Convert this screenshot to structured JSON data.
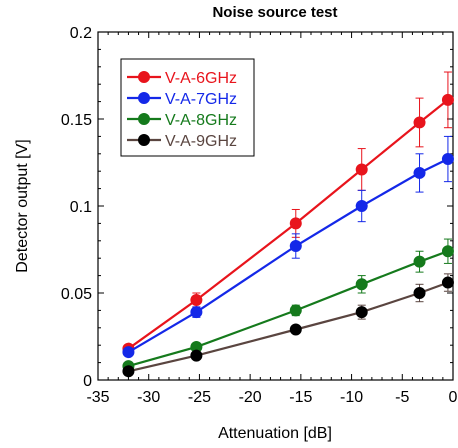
{
  "chart_data": {
    "type": "line",
    "title": "Noise source test",
    "xlabel": "Attenuation [dB]",
    "ylabel": "Detector output [V]",
    "xlim": [
      -35,
      0
    ],
    "ylim": [
      0,
      0.2
    ],
    "x_ticks": [
      "-35",
      "-30",
      "-25",
      "-20",
      "-15",
      "-10",
      "-5",
      "0"
    ],
    "y_ticks": [
      "0",
      "0.05",
      "0.1",
      "0.15",
      "0.2"
    ],
    "grid": false,
    "legend_position": "top-left",
    "error_bars": true,
    "series": [
      {
        "name": "V-A-6GHz",
        "color": "#e8141c",
        "x": [
          -32,
          -25.3,
          -15.5,
          -9,
          -3.3,
          -0.5
        ],
        "y": [
          0.018,
          0.046,
          0.09,
          0.121,
          0.148,
          0.161
        ],
        "err": [
          0.002,
          0.004,
          0.008,
          0.012,
          0.014,
          0.016
        ]
      },
      {
        "name": "V-A-7GHz",
        "color": "#1428e8",
        "x": [
          -32,
          -25.3,
          -15.5,
          -9,
          -3.3,
          -0.5
        ],
        "y": [
          0.016,
          0.039,
          0.077,
          0.1,
          0.119,
          0.127
        ],
        "err": [
          0.002,
          0.003,
          0.007,
          0.009,
          0.011,
          0.013
        ]
      },
      {
        "name": "V-A-8GHz",
        "color": "#157a1c",
        "x": [
          -32,
          -25.3,
          -15.5,
          -9,
          -3.3,
          -0.5
        ],
        "y": [
          0.008,
          0.019,
          0.04,
          0.055,
          0.068,
          0.074
        ],
        "err": [
          0.001,
          0.002,
          0.003,
          0.005,
          0.006,
          0.007
        ]
      },
      {
        "name": "V-A-9GHz",
        "color": "#5a4540",
        "marker_color": "#000000",
        "x": [
          -32,
          -25.3,
          -15.5,
          -9,
          -3.3,
          -0.5
        ],
        "y": [
          0.005,
          0.014,
          0.029,
          0.039,
          0.05,
          0.056
        ],
        "err": [
          0.001,
          0.002,
          0.002,
          0.004,
          0.005,
          0.005
        ]
      }
    ]
  }
}
